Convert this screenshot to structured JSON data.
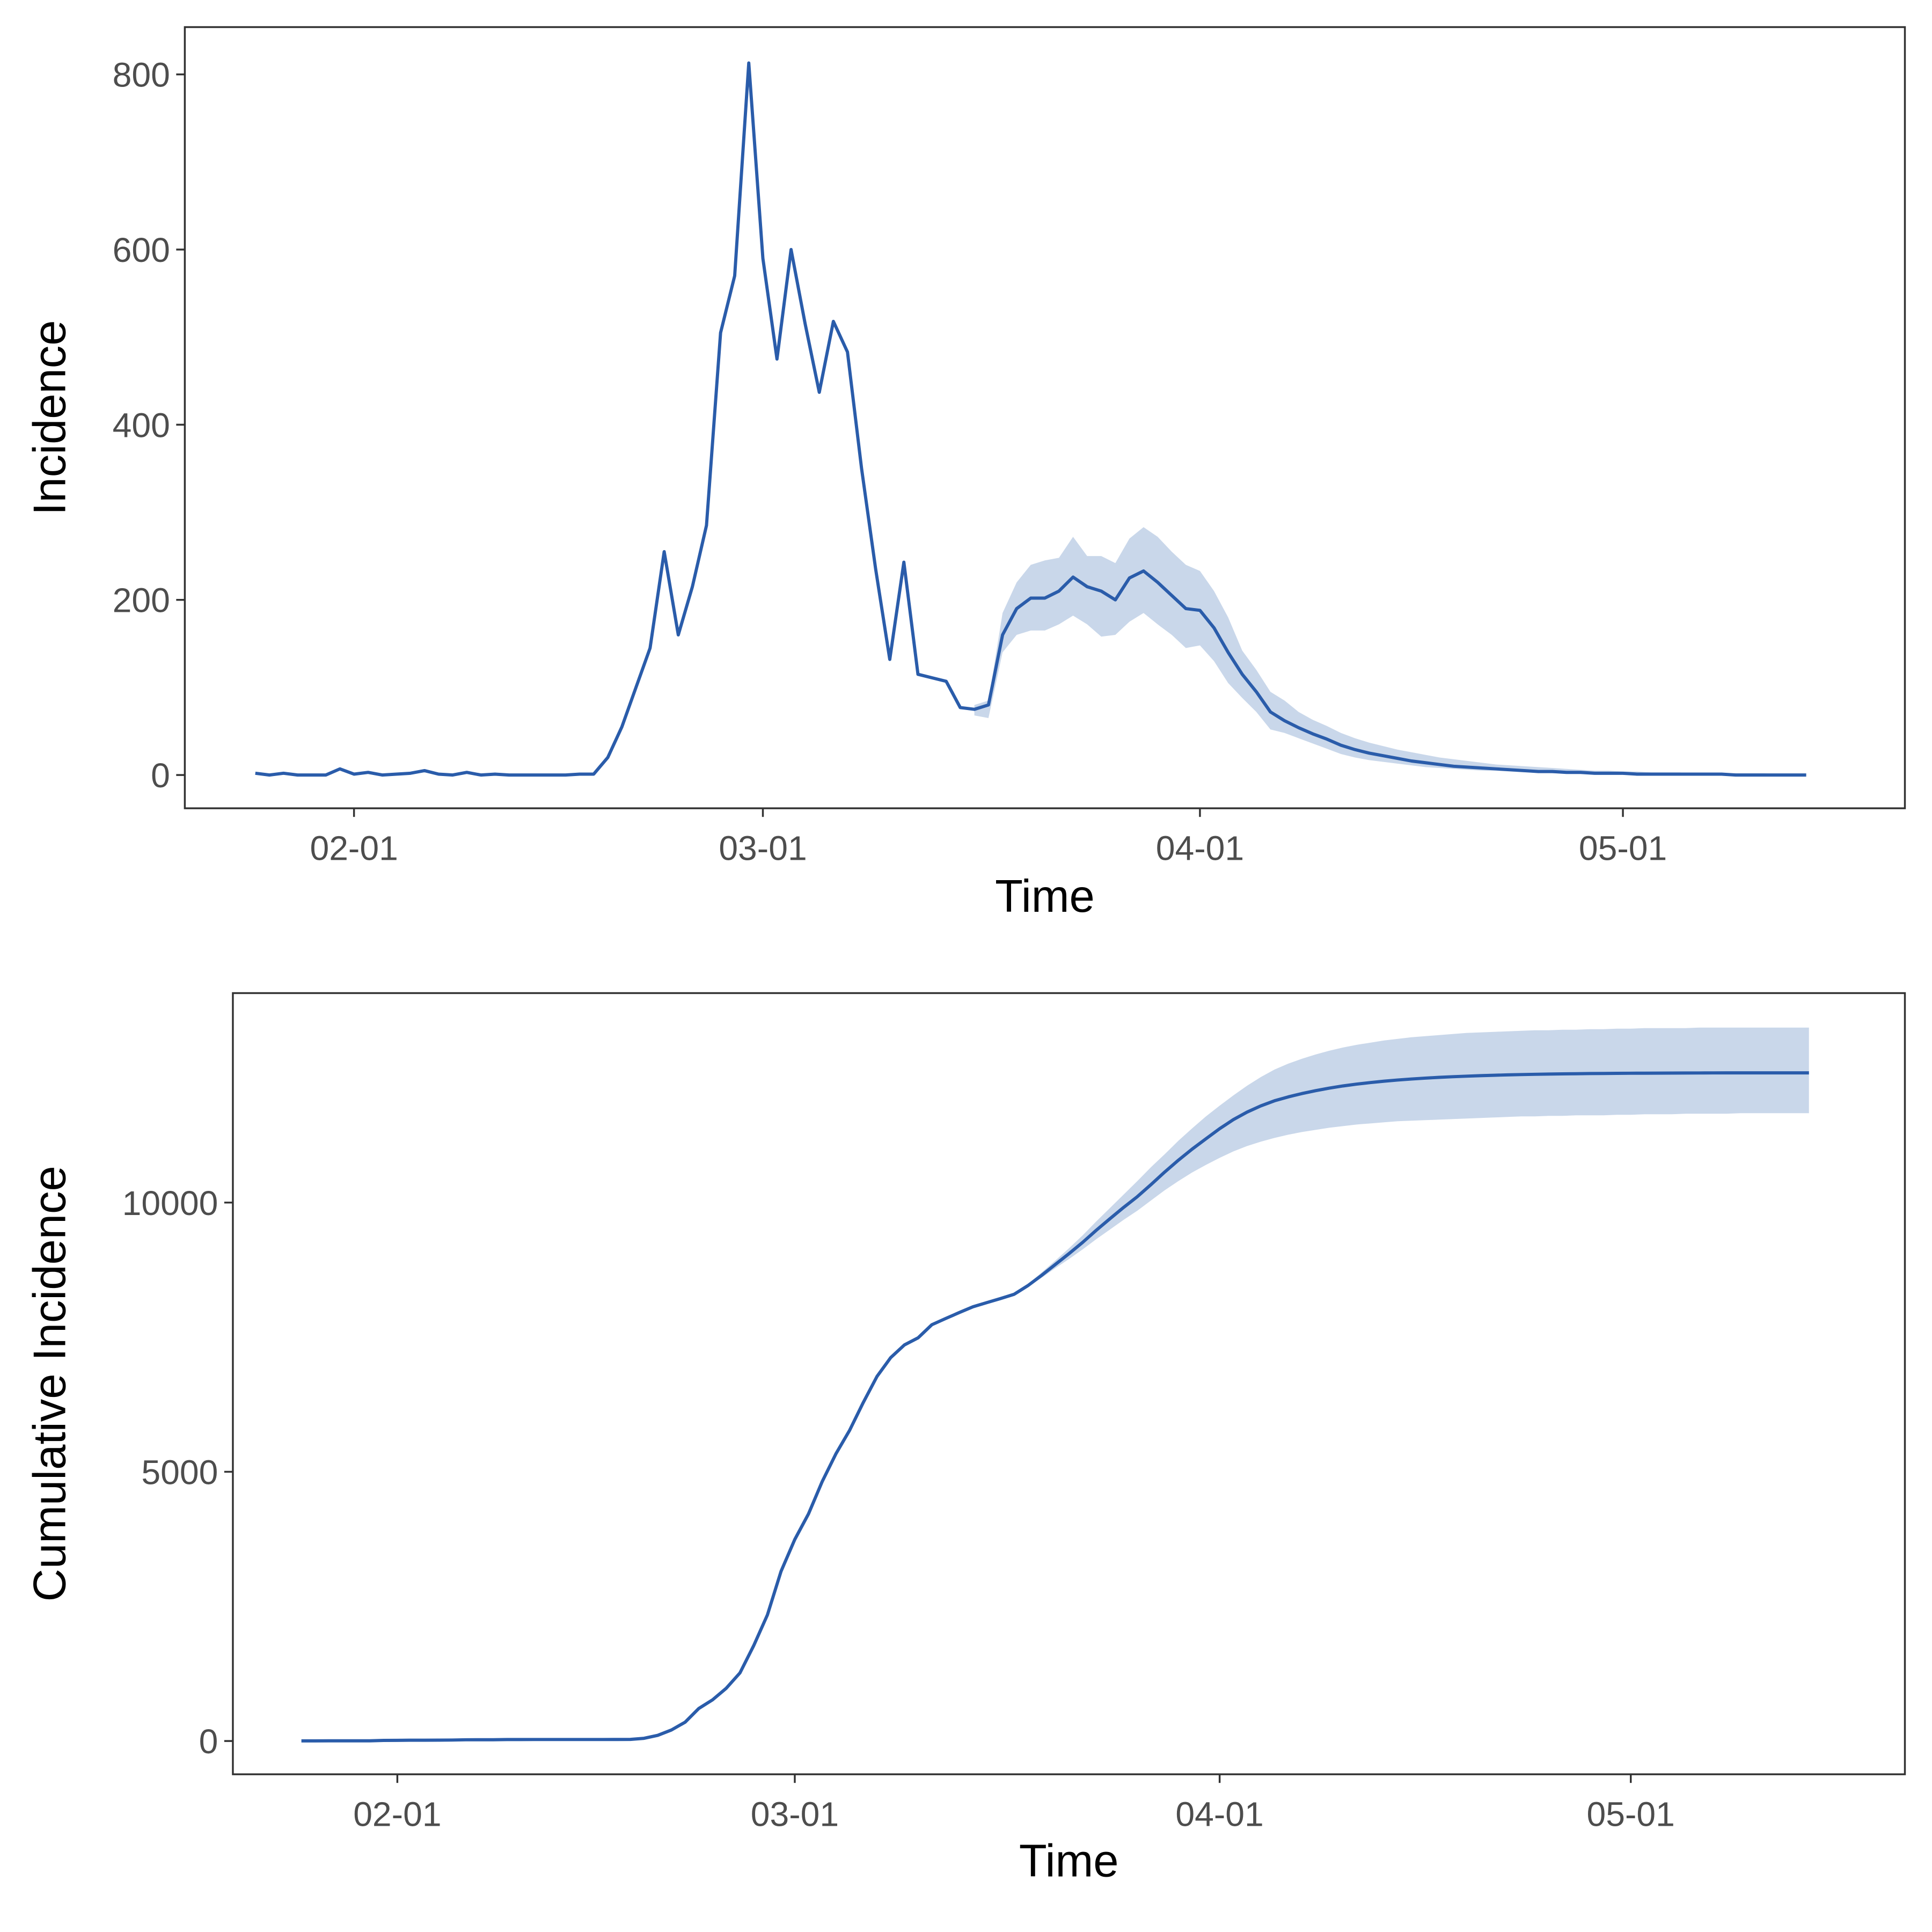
{
  "chart_data": [
    {
      "type": "line",
      "xlabel": "Time",
      "ylabel": "Incidence",
      "color": "#2a5caa",
      "band_color": "#c9d7ea",
      "x": [
        "01-25",
        "01-26",
        "01-27",
        "01-28",
        "01-29",
        "01-30",
        "01-31",
        "02-01",
        "02-02",
        "02-03",
        "02-04",
        "02-05",
        "02-06",
        "02-07",
        "02-08",
        "02-09",
        "02-10",
        "02-11",
        "02-12",
        "02-13",
        "02-14",
        "02-15",
        "02-16",
        "02-17",
        "02-18",
        "02-19",
        "02-20",
        "02-21",
        "02-22",
        "02-23",
        "02-24",
        "02-25",
        "02-26",
        "02-27",
        "02-28",
        "02-29",
        "03-01",
        "03-02",
        "03-03",
        "03-04",
        "03-05",
        "03-06",
        "03-07",
        "03-08",
        "03-09",
        "03-10",
        "03-11",
        "03-12",
        "03-13",
        "03-14",
        "03-15",
        "03-16",
        "03-17",
        "03-18",
        "03-19",
        "03-20",
        "03-21",
        "03-22",
        "03-23",
        "03-24",
        "03-25",
        "03-26",
        "03-27",
        "03-28",
        "03-29",
        "03-30",
        "03-31",
        "04-01",
        "04-02",
        "04-03",
        "04-04",
        "04-05",
        "04-06",
        "04-07",
        "04-08",
        "04-09",
        "04-10",
        "04-11",
        "04-12",
        "04-13",
        "04-14",
        "04-15",
        "04-16",
        "04-17",
        "04-18",
        "04-19",
        "04-20",
        "04-21",
        "04-22",
        "04-23",
        "04-24",
        "04-25",
        "04-26",
        "04-27",
        "04-28",
        "04-29",
        "04-30",
        "05-01",
        "05-02",
        "05-03",
        "05-04",
        "05-05",
        "05-06",
        "05-07",
        "05-08",
        "05-09",
        "05-10",
        "05-11",
        "05-12",
        "05-13",
        "05-14"
      ],
      "values": [
        2,
        0,
        2,
        0,
        0,
        0,
        7,
        1,
        3,
        0,
        1,
        2,
        5,
        1,
        0,
        3,
        0,
        1,
        0,
        0,
        0,
        0,
        0,
        1,
        1,
        20,
        55,
        100,
        145,
        255,
        160,
        215,
        285,
        505,
        570,
        813,
        590,
        475,
        600,
        515,
        437,
        518,
        483,
        350,
        235,
        132,
        243,
        115,
        111,
        107,
        77,
        75,
        80,
        160,
        190,
        202,
        202,
        210,
        226,
        215,
        210,
        200,
        225,
        233,
        220,
        205,
        190,
        188,
        168,
        140,
        115,
        95,
        72,
        62,
        54,
        47,
        41,
        34,
        29,
        25,
        22,
        19,
        16,
        14,
        12,
        10,
        9,
        8,
        7,
        6,
        5,
        4,
        4,
        3,
        3,
        2,
        2,
        2,
        1,
        1,
        1,
        1,
        1,
        1,
        1,
        0,
        0,
        0,
        0,
        0,
        0
      ],
      "lower": [
        null,
        null,
        null,
        null,
        null,
        null,
        null,
        null,
        null,
        null,
        null,
        null,
        null,
        null,
        null,
        null,
        null,
        null,
        null,
        null,
        null,
        null,
        null,
        null,
        null,
        null,
        null,
        null,
        null,
        null,
        null,
        null,
        null,
        null,
        null,
        null,
        null,
        null,
        null,
        null,
        null,
        null,
        null,
        null,
        null,
        null,
        null,
        null,
        null,
        null,
        null,
        68,
        65,
        140,
        160,
        165,
        165,
        172,
        182,
        172,
        158,
        160,
        175,
        185,
        172,
        160,
        145,
        148,
        130,
        105,
        88,
        72,
        52,
        48,
        42,
        36,
        30,
        24,
        20,
        17,
        15,
        13,
        11,
        9,
        8,
        7,
        6,
        5,
        5,
        4,
        3,
        3,
        2,
        2,
        2,
        1,
        1,
        1,
        1,
        0,
        0,
        0,
        0,
        0,
        0,
        0,
        0,
        0,
        0,
        0,
        0
      ],
      "upper": [
        null,
        null,
        null,
        null,
        null,
        null,
        null,
        null,
        null,
        null,
        null,
        null,
        null,
        null,
        null,
        null,
        null,
        null,
        null,
        null,
        null,
        null,
        null,
        null,
        null,
        null,
        null,
        null,
        null,
        null,
        null,
        null,
        null,
        null,
        null,
        null,
        null,
        null,
        null,
        null,
        null,
        null,
        null,
        null,
        null,
        null,
        null,
        null,
        null,
        null,
        null,
        80,
        85,
        185,
        220,
        240,
        245,
        248,
        272,
        250,
        250,
        242,
        270,
        283,
        272,
        255,
        240,
        233,
        210,
        180,
        142,
        120,
        95,
        85,
        72,
        63,
        56,
        48,
        42,
        37,
        33,
        29,
        26,
        23,
        20,
        18,
        16,
        14,
        12,
        11,
        10,
        9,
        8,
        7,
        6,
        5,
        5,
        4,
        4,
        3,
        3,
        3,
        2,
        2,
        2,
        2,
        2,
        2,
        1,
        1,
        1
      ],
      "xlim": [
        "01-20",
        "05-21"
      ],
      "xticks": [
        "02-01",
        "03-01",
        "04-01",
        "05-01"
      ],
      "ylim": [
        -38,
        854
      ],
      "yticks": [
        0,
        200,
        400,
        600,
        800
      ]
    },
    {
      "type": "line",
      "xlabel": "Time",
      "ylabel": "Cumulative Incidence",
      "color": "#2a5caa",
      "band_color": "#c9d7ea",
      "x": [
        "01-25",
        "01-26",
        "01-27",
        "01-28",
        "01-29",
        "01-30",
        "01-31",
        "02-01",
        "02-02",
        "02-03",
        "02-04",
        "02-05",
        "02-06",
        "02-07",
        "02-08",
        "02-09",
        "02-10",
        "02-11",
        "02-12",
        "02-13",
        "02-14",
        "02-15",
        "02-16",
        "02-17",
        "02-18",
        "02-19",
        "02-20",
        "02-21",
        "02-22",
        "02-23",
        "02-24",
        "02-25",
        "02-26",
        "02-27",
        "02-28",
        "02-29",
        "03-01",
        "03-02",
        "03-03",
        "03-04",
        "03-05",
        "03-06",
        "03-07",
        "03-08",
        "03-09",
        "03-10",
        "03-11",
        "03-12",
        "03-13",
        "03-14",
        "03-15",
        "03-16",
        "03-17",
        "03-18",
        "03-19",
        "03-20",
        "03-21",
        "03-22",
        "03-23",
        "03-24",
        "03-25",
        "03-26",
        "03-27",
        "03-28",
        "03-29",
        "03-30",
        "03-31",
        "04-01",
        "04-02",
        "04-03",
        "04-04",
        "04-05",
        "04-06",
        "04-07",
        "04-08",
        "04-09",
        "04-10",
        "04-11",
        "04-12",
        "04-13",
        "04-14",
        "04-15",
        "04-16",
        "04-17",
        "04-18",
        "04-19",
        "04-20",
        "04-21",
        "04-22",
        "04-23",
        "04-24",
        "04-25",
        "04-26",
        "04-27",
        "04-28",
        "04-29",
        "04-30",
        "05-01",
        "05-02",
        "05-03",
        "05-04",
        "05-05",
        "05-06",
        "05-07",
        "05-08",
        "05-09",
        "05-10",
        "05-11",
        "05-12",
        "05-13",
        "05-14"
      ],
      "values": [
        2,
        2,
        4,
        4,
        4,
        4,
        11,
        12,
        15,
        15,
        16,
        18,
        23,
        24,
        24,
        27,
        27,
        28,
        28,
        28,
        28,
        28,
        28,
        29,
        30,
        50,
        105,
        205,
        350,
        605,
        765,
        980,
        1265,
        1770,
        2340,
        3153,
        3743,
        4218,
        4818,
        5333,
        5770,
        6288,
        6771,
        7121,
        7356,
        7488,
        7731,
        7846,
        7957,
        8064,
        8141,
        8216,
        8296,
        8456,
        8646,
        8848,
        9050,
        9260,
        9486,
        9701,
        9911,
        10111,
        10336,
        10569,
        10789,
        10994,
        11184,
        11372,
        11540,
        11680,
        11795,
        11890,
        11962,
        12024,
        12078,
        12125,
        12166,
        12200,
        12229,
        12254,
        12276,
        12295,
        12311,
        12325,
        12337,
        12347,
        12356,
        12364,
        12371,
        12377,
        12382,
        12386,
        12390,
        12393,
        12396,
        12398,
        12400,
        12402,
        12403,
        12404,
        12405,
        12406,
        12407,
        12408,
        12409,
        12409,
        12409,
        12409,
        12409,
        12409,
        12409
      ],
      "lower": [
        null,
        null,
        null,
        null,
        null,
        null,
        null,
        null,
        null,
        null,
        null,
        null,
        null,
        null,
        null,
        null,
        null,
        null,
        null,
        null,
        null,
        null,
        null,
        null,
        null,
        null,
        null,
        null,
        null,
        null,
        null,
        null,
        null,
        null,
        null,
        null,
        null,
        null,
        null,
        null,
        null,
        null,
        null,
        null,
        null,
        null,
        null,
        null,
        null,
        null,
        null,
        8216,
        8290,
        8430,
        8600,
        8780,
        8950,
        9130,
        9320,
        9500,
        9680,
        9850,
        10040,
        10230,
        10400,
        10560,
        10700,
        10830,
        10950,
        11050,
        11130,
        11200,
        11260,
        11310,
        11350,
        11390,
        11420,
        11450,
        11470,
        11490,
        11510,
        11520,
        11530,
        11540,
        11550,
        11560,
        11570,
        11580,
        11590,
        11600,
        11600,
        11610,
        11610,
        11620,
        11620,
        11620,
        11630,
        11630,
        11640,
        11640,
        11640,
        11650,
        11650,
        11650,
        11650,
        11660,
        11660,
        11660,
        11660,
        11660,
        11660
      ],
      "upper": [
        null,
        null,
        null,
        null,
        null,
        null,
        null,
        null,
        null,
        null,
        null,
        null,
        null,
        null,
        null,
        null,
        null,
        null,
        null,
        null,
        null,
        null,
        null,
        null,
        null,
        null,
        null,
        null,
        null,
        null,
        null,
        null,
        null,
        null,
        null,
        null,
        null,
        null,
        null,
        null,
        null,
        null,
        null,
        null,
        null,
        null,
        null,
        null,
        null,
        null,
        null,
        8216,
        8305,
        8480,
        8700,
        8920,
        9150,
        9390,
        9650,
        9900,
        10150,
        10400,
        10660,
        10900,
        11150,
        11380,
        11600,
        11800,
        11990,
        12170,
        12330,
        12470,
        12580,
        12670,
        12750,
        12820,
        12880,
        12930,
        12970,
        13010,
        13040,
        13070,
        13090,
        13110,
        13130,
        13150,
        13160,
        13170,
        13180,
        13190,
        13200,
        13200,
        13210,
        13210,
        13220,
        13220,
        13230,
        13230,
        13240,
        13240,
        13240,
        13240,
        13250,
        13250,
        13250,
        13250,
        13250,
        13250,
        13250,
        13250,
        13250
      ],
      "xlim": [
        "01-20",
        "05-21"
      ],
      "xticks": [
        "02-01",
        "03-01",
        "04-01",
        "05-01"
      ],
      "ylim": [
        -618,
        13890
      ],
      "yticks": [
        0,
        5000,
        10000
      ]
    }
  ]
}
